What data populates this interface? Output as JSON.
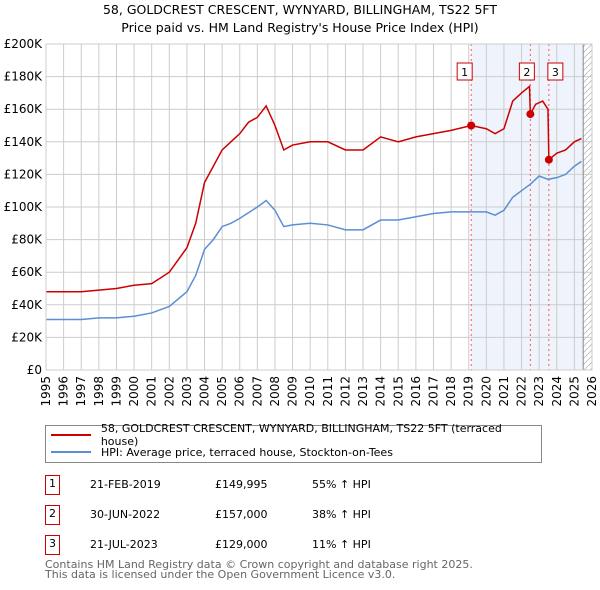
{
  "title": "58, GOLDCREST CRESCENT, WYNYARD, BILLINGHAM, TS22 5FT",
  "subtitle": "Price paid vs. HM Land Registry's House Price Index (HPI)",
  "chart_data": {
    "type": "line",
    "xlim": [
      1995,
      2026
    ],
    "ylim": [
      0,
      200000
    ],
    "yticks": [
      {
        "v": 0,
        "l": "£0"
      },
      {
        "v": 20000,
        "l": "£20K"
      },
      {
        "v": 40000,
        "l": "£40K"
      },
      {
        "v": 60000,
        "l": "£60K"
      },
      {
        "v": 80000,
        "l": "£80K"
      },
      {
        "v": 100000,
        "l": "£100K"
      },
      {
        "v": 120000,
        "l": "£120K"
      },
      {
        "v": 140000,
        "l": "£140K"
      },
      {
        "v": 160000,
        "l": "£160K"
      },
      {
        "v": 180000,
        "l": "£180K"
      },
      {
        "v": 200000,
        "l": "£200K"
      }
    ],
    "xticks": [
      "1995",
      "1996",
      "1997",
      "1998",
      "1999",
      "2000",
      "2001",
      "2002",
      "2003",
      "2004",
      "2005",
      "2006",
      "2007",
      "2008",
      "2009",
      "2010",
      "2011",
      "2012",
      "2013",
      "2014",
      "2015",
      "2016",
      "2017",
      "2018",
      "2019",
      "2020",
      "2021",
      "2022",
      "2023",
      "2024",
      "2025",
      "2026"
    ],
    "shaded_from": 2019.14,
    "hatched_from": 2025.5,
    "series": [
      {
        "name": "58, GOLDCREST CRESCENT, WYNYARD, BILLINGHAM, TS22 5FT (terraced house)",
        "color": "#cc0000",
        "x": [
          1995,
          1996,
          1997,
          1998,
          1999,
          2000,
          2001,
          2002,
          2003,
          2003.5,
          2004,
          2004.5,
          2005,
          2005.5,
          2006,
          2006.5,
          2007,
          2007.5,
          2008,
          2008.5,
          2009,
          2010,
          2011,
          2012,
          2013,
          2014,
          2015,
          2016,
          2017,
          2018,
          2019.14,
          2020,
          2020.5,
          2021,
          2021.5,
          2022,
          2022.45,
          2022.5,
          2022.8,
          2023.2,
          2023.5,
          2023.55,
          2024,
          2024.5,
          2025,
          2025.4
        ],
        "y": [
          48000,
          48000,
          48000,
          49000,
          50000,
          52000,
          53000,
          60000,
          75000,
          90000,
          115000,
          125000,
          135000,
          140000,
          145000,
          152000,
          155000,
          162000,
          150000,
          135000,
          138000,
          140000,
          140000,
          135000,
          135000,
          143000,
          140000,
          143000,
          145000,
          147000,
          149995,
          148000,
          145000,
          148000,
          165000,
          170000,
          174000,
          157000,
          163000,
          165000,
          160000,
          129000,
          133000,
          135000,
          140000,
          142000
        ]
      },
      {
        "name": "HPI: Average price, terraced house, Stockton-on-Tees",
        "color": "#5b8fd4",
        "x": [
          1995,
          1996,
          1997,
          1998,
          1999,
          2000,
          2001,
          2002,
          2003,
          2003.5,
          2004,
          2004.5,
          2005,
          2005.5,
          2006,
          2007,
          2007.5,
          2008,
          2008.5,
          2009,
          2010,
          2011,
          2012,
          2013,
          2014,
          2015,
          2016,
          2017,
          2018,
          2019,
          2020,
          2020.5,
          2021,
          2021.5,
          2022,
          2022.5,
          2023,
          2023.5,
          2024,
          2024.5,
          2025,
          2025.4
        ],
        "y": [
          31000,
          31000,
          31000,
          32000,
          32000,
          33000,
          35000,
          39000,
          48000,
          58000,
          74000,
          80000,
          88000,
          90000,
          93000,
          100000,
          104000,
          98000,
          88000,
          89000,
          90000,
          89000,
          86000,
          86000,
          92000,
          92000,
          94000,
          96000,
          97000,
          97000,
          97000,
          95000,
          98000,
          106000,
          110000,
          114000,
          119000,
          117000,
          118000,
          120000,
          125000,
          128000
        ]
      }
    ],
    "sales": [
      {
        "n": "1",
        "x": 2019.14,
        "y": 149995
      },
      {
        "n": "2",
        "x": 2022.5,
        "y": 157000
      },
      {
        "n": "3",
        "x": 2023.55,
        "y": 129000
      }
    ]
  },
  "table": [
    {
      "n": "1",
      "date": "21-FEB-2019",
      "price": "£149,995",
      "hpi": "55% ↑ HPI"
    },
    {
      "n": "2",
      "date": "30-JUN-2022",
      "price": "£157,000",
      "hpi": "38% ↑ HPI"
    },
    {
      "n": "3",
      "date": "21-JUL-2023",
      "price": "£129,000",
      "hpi": "11% ↑ HPI"
    }
  ],
  "footer": {
    "line1": "Contains HM Land Registry data © Crown copyright and database right 2025.",
    "line2": "This data is licensed under the Open Government Licence v3.0."
  }
}
